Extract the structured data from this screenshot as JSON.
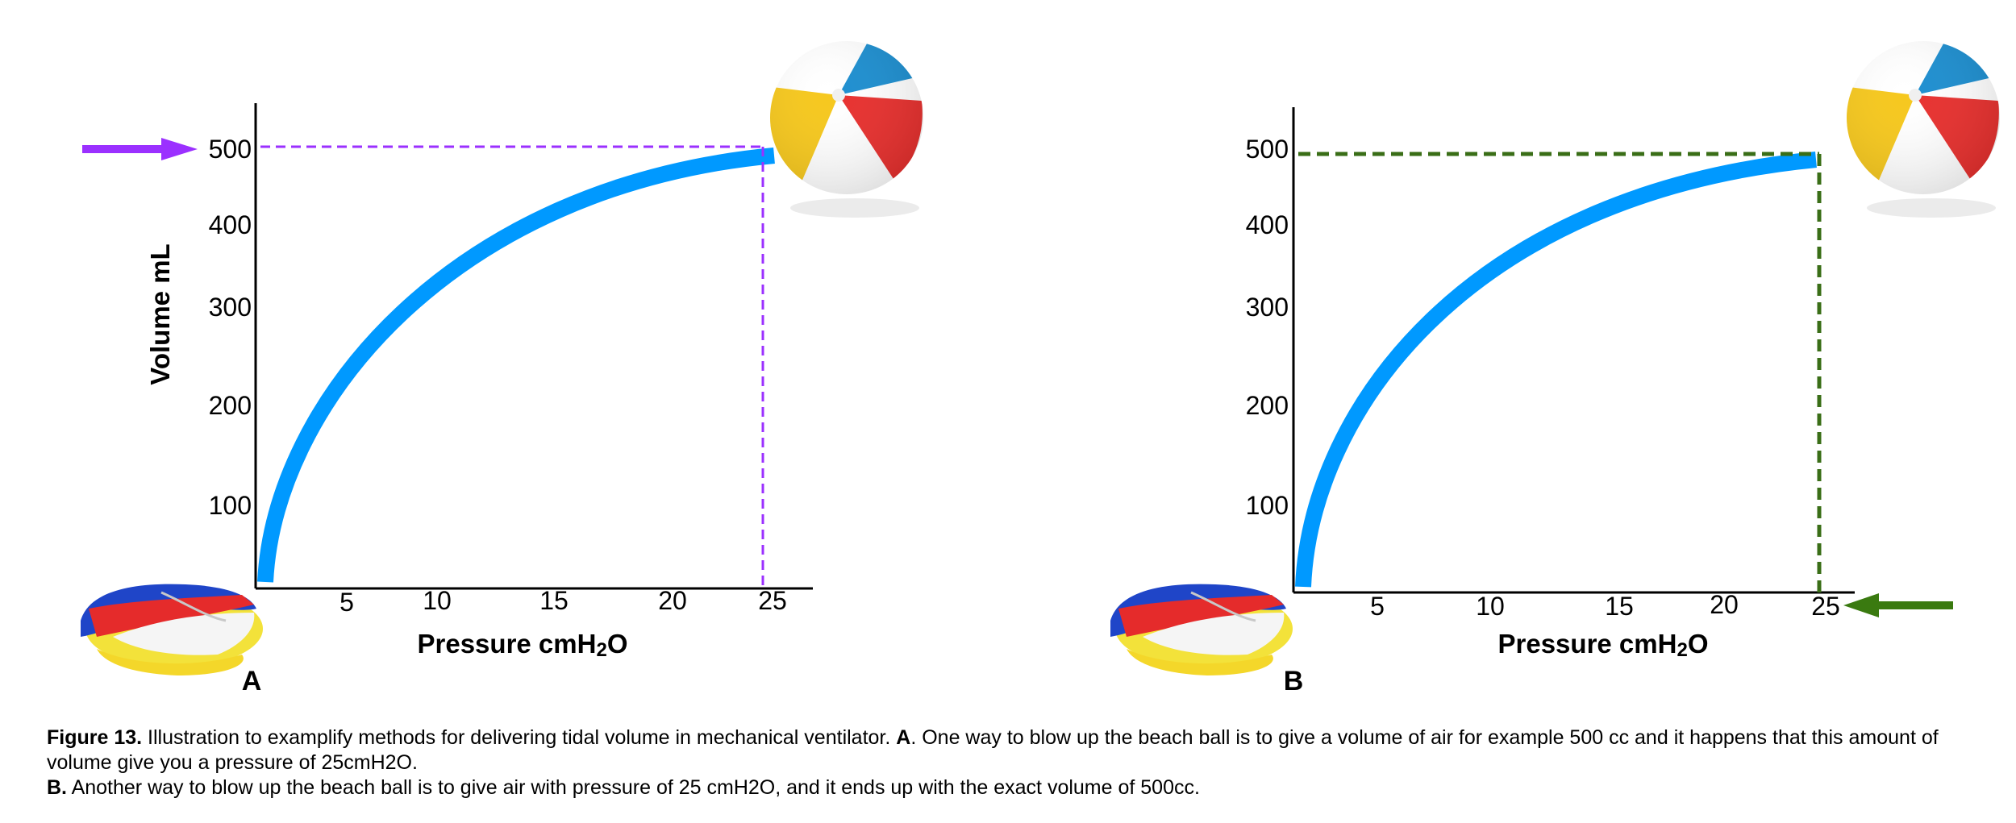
{
  "panels": [
    {
      "letter": "A",
      "ylabel": "Volume mL",
      "xlabel_main": "Pressure cmH",
      "xlabel_sub": "2",
      "xlabel_end": "O",
      "y_ticks": [
        "100",
        "200",
        "300",
        "400",
        "500"
      ],
      "x_ticks": [
        "5",
        "10",
        "15",
        "20",
        "25"
      ],
      "guide_color": "#9b30ff",
      "arrow_color": "#9b30ff",
      "arrow_target": "volume axis at 500",
      "curve_color": "#0099ff"
    },
    {
      "letter": "B",
      "ylabel": "",
      "xlabel_main": "Pressure cmH",
      "xlabel_sub": "2",
      "xlabel_end": "O",
      "y_ticks": [
        "100",
        "200",
        "300",
        "400",
        "500"
      ],
      "x_ticks": [
        "5",
        "10",
        "15",
        "20",
        "25"
      ],
      "guide_color": "#3a6e17",
      "arrow_color": "#3a7a10",
      "arrow_target": "pressure axis at 25",
      "curve_color": "#0099ff"
    }
  ],
  "illustrations": {
    "inflated": "beach-ball-inflated",
    "deflated": "beach-ball-deflated"
  },
  "caption": {
    "line1_bold": "Figure 13.",
    "line1_text": " Illustration to examplify methods for delivering tidal volume in mechanical ventilator. ",
    "line1_bold2": "A",
    "line1_text2": ". One way to blow up the beach ball is to give a volume of air for example 500 cc and it happens that this amount of volume give you a pressure of 25cmH2O.",
    "line2_bold": "B.",
    "line2_text": " Another way to blow up the beach ball is to give air with pressure of 25 cmH2O, and it ends up with the exact volume of 500cc."
  }
}
